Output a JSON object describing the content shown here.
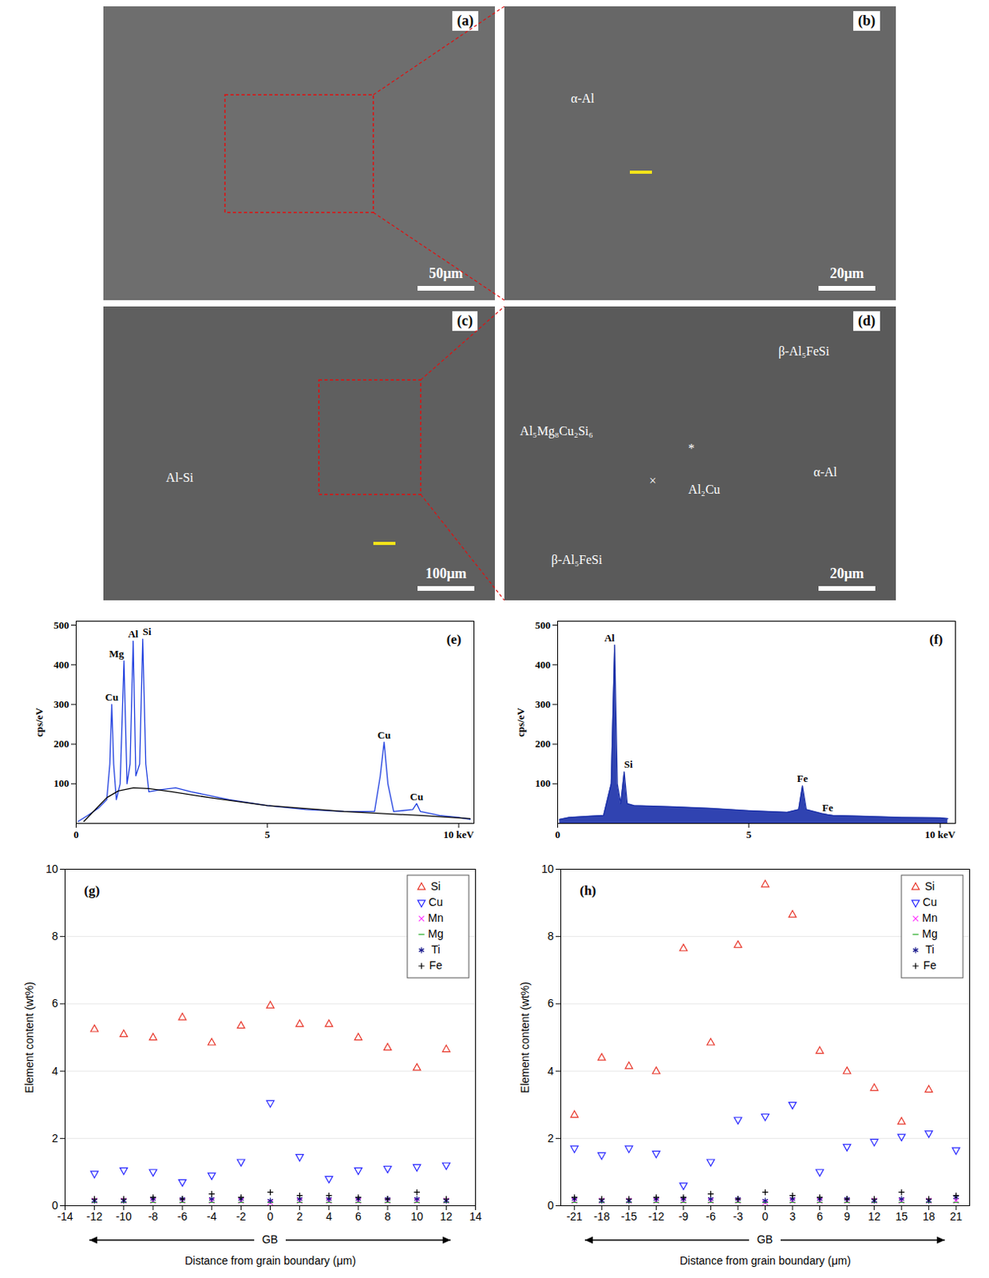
{
  "micrographs": [
    {
      "panel": "(a)",
      "scale_bar": "50μm",
      "labels": []
    },
    {
      "panel": "(b)",
      "scale_bar": "20μm",
      "labels": [
        "α-Al"
      ]
    },
    {
      "panel": "(c)",
      "scale_bar": "100μm",
      "labels": [
        "Al-Si"
      ]
    },
    {
      "panel": "(d)",
      "scale_bar": "20μm",
      "labels": [
        "Al₅Mg₈Cu₂Si₆",
        "*",
        "×",
        "β-Al₅FeSi",
        "β-Al₅FeSi",
        "Al₂Cu",
        "α-Al"
      ]
    }
  ],
  "chart_data": [
    {
      "type": "line",
      "title": "(e)",
      "ylabel": "cps/eV",
      "xlim": [
        0,
        10.4
      ],
      "xticks": [
        0,
        5,
        {
          "value": 10,
          "label": "10 keV"
        }
      ],
      "ylim": [
        0,
        510
      ],
      "yticks": [
        100,
        200,
        300,
        400,
        500
      ],
      "series": [
        {
          "color": "#1f3fdf",
          "x": [
            0.05,
            0.3,
            0.6,
            0.8,
            0.88,
            0.93,
            0.98,
            1.05,
            1.15,
            1.25,
            1.33,
            1.41,
            1.49,
            1.56,
            1.66,
            1.74,
            1.82,
            1.9,
            2.2,
            2.6,
            3,
            3.5,
            4,
            5,
            6,
            7,
            7.8,
            7.95,
            8.05,
            8.15,
            8.3,
            8.8,
            8.9,
            9,
            9.5,
            10,
            10.3
          ],
          "values": [
            5,
            20,
            40,
            60,
            150,
            300,
            150,
            60,
            100,
            410,
            100,
            150,
            460,
            120,
            150,
            465,
            150,
            80,
            85,
            90,
            80,
            70,
            60,
            45,
            35,
            30,
            30,
            120,
            205,
            100,
            30,
            35,
            50,
            30,
            20,
            15,
            10
          ]
        },
        {
          "color": "#000000",
          "x": [
            0.2,
            0.5,
            0.8,
            1.1,
            1.5,
            1.9,
            2.5,
            3.5,
            5,
            7,
            9,
            10.3
          ],
          "values": [
            5,
            35,
            65,
            82,
            90,
            88,
            80,
            65,
            45,
            30,
            20,
            12
          ]
        }
      ],
      "annotations": [
        {
          "x": 0.93,
          "y": 300,
          "text": "Cu"
        },
        {
          "x": 1.25,
          "y": 410,
          "text": "Mg"
        },
        {
          "x": 1.49,
          "y": 460,
          "text": "Al"
        },
        {
          "x": 1.74,
          "y": 465,
          "text": "Si"
        },
        {
          "x": 8.05,
          "y": 205,
          "text": "Cu"
        },
        {
          "x": 8.9,
          "y": 50,
          "text": "Cu"
        }
      ]
    },
    {
      "type": "area",
      "title": "(f)",
      "ylabel": "cps/eV",
      "xlim": [
        0,
        10.4
      ],
      "xticks": [
        0,
        5,
        {
          "value": 10,
          "label": "10 keV"
        }
      ],
      "ylim": [
        0,
        510
      ],
      "yticks": [
        100,
        200,
        300,
        400,
        500
      ],
      "series": [
        {
          "color": "#1a2fa8",
          "type": "area",
          "x": [
            0.05,
            0.3,
            0.8,
            1.2,
            1.4,
            1.49,
            1.56,
            1.65,
            1.74,
            1.82,
            2,
            3,
            4,
            5,
            6,
            6.3,
            6.4,
            6.5,
            6.9,
            7.06,
            7.2,
            8,
            9,
            10,
            10.2
          ],
          "values": [
            10,
            15,
            18,
            20,
            100,
            450,
            100,
            50,
            130,
            50,
            45,
            42,
            38,
            32,
            28,
            35,
            95,
            35,
            25,
            22,
            20,
            18,
            15,
            14,
            12
          ]
        }
      ],
      "annotations": [
        {
          "x": 1.49,
          "y": 450,
          "text": "Al"
        },
        {
          "x": 1.74,
          "y": 130,
          "text": "Si"
        },
        {
          "x": 6.4,
          "y": 95,
          "text": "Fe"
        },
        {
          "x": 7.06,
          "y": 22,
          "text": "Fe"
        }
      ]
    },
    {
      "type": "scatter",
      "title": "(g)",
      "xlabel": "Distance from grain boundary (μm)",
      "ylabel": "Element content (wt%)",
      "x": [
        -12,
        -10,
        -8,
        -6,
        -4,
        -2,
        0,
        2,
        4,
        6,
        8,
        10,
        12
      ],
      "xlim": [
        -14,
        14
      ],
      "xticks": [
        -14,
        -12,
        -10,
        -8,
        -6,
        -4,
        -2,
        0,
        2,
        4,
        6,
        8,
        10,
        12,
        14
      ],
      "ylim": [
        0,
        10
      ],
      "yticks": [
        0,
        2,
        4,
        6,
        8,
        10
      ],
      "grid": true,
      "legend": "top-right",
      "series": [
        {
          "name": "Si",
          "color": "#e8382c",
          "marker": "triangle-up",
          "values": [
            5.25,
            5.1,
            5.0,
            5.6,
            4.85,
            5.35,
            5.95,
            5.4,
            5.4,
            5.0,
            4.7,
            4.1,
            4.65
          ]
        },
        {
          "name": "Cu",
          "color": "#2a2aff",
          "marker": "triangle-down",
          "values": [
            0.95,
            1.05,
            1.0,
            0.7,
            0.9,
            1.3,
            3.05,
            1.45,
            0.8,
            1.05,
            1.1,
            1.15,
            1.2
          ]
        },
        {
          "name": "Mn",
          "color": "#ff33ff",
          "marker": "x",
          "values": [
            0.15,
            0.15,
            0.15,
            0.15,
            0.15,
            0.15,
            0.1,
            0.15,
            0.15,
            0.15,
            0.15,
            0.15,
            0.15
          ]
        },
        {
          "name": "Mg",
          "color": "#22aa22",
          "marker": "dash",
          "values": [
            0.1,
            0.1,
            0.1,
            0.1,
            0.1,
            0.1,
            0.1,
            0.1,
            0.1,
            0.1,
            0.1,
            0.1,
            0.1
          ]
        },
        {
          "name": "Ti",
          "color": "#1a1a8c",
          "marker": "asterisk",
          "values": [
            0.15,
            0.15,
            0.2,
            0.2,
            0.2,
            0.2,
            0.15,
            0.2,
            0.2,
            0.2,
            0.2,
            0.2,
            0.15
          ]
        },
        {
          "name": "Fe",
          "color": "#000000",
          "marker": "plus",
          "values": [
            0.2,
            0.2,
            0.25,
            0.2,
            0.35,
            0.25,
            0.4,
            0.3,
            0.3,
            0.25,
            0.2,
            0.4,
            0.2
          ]
        }
      ],
      "annotations": [
        {
          "x": 0,
          "text": "GB"
        }
      ]
    },
    {
      "type": "scatter",
      "title": "(h)",
      "xlabel": "Distance from grain boundary (μm)",
      "ylabel": "Element content (wt%)",
      "x": [
        -21,
        -18,
        -15,
        -12,
        -9,
        -6,
        -3,
        0,
        3,
        6,
        9,
        12,
        15,
        18,
        21
      ],
      "xlim": [
        -22.5,
        22.5
      ],
      "xticks": [
        -21,
        -18,
        -15,
        -12,
        -9,
        -6,
        -3,
        0,
        3,
        6,
        9,
        12,
        15,
        18,
        21
      ],
      "ylim": [
        0,
        10
      ],
      "yticks": [
        0,
        2,
        4,
        6,
        8,
        10
      ],
      "grid": true,
      "legend": "top-right",
      "series": [
        {
          "name": "Si",
          "color": "#e8382c",
          "marker": "triangle-up",
          "values": [
            2.7,
            4.4,
            4.15,
            4.0,
            7.65,
            4.85,
            7.75,
            9.55,
            8.65,
            4.6,
            4.0,
            3.5,
            2.5,
            3.45,
            null
          ]
        },
        {
          "name": "Cu",
          "color": "#2a2aff",
          "marker": "triangle-down",
          "values": [
            1.7,
            1.5,
            1.7,
            1.55,
            0.6,
            1.3,
            2.55,
            2.65,
            3.0,
            1.0,
            1.75,
            1.9,
            2.05,
            2.15,
            1.65
          ]
        },
        {
          "name": "Mn",
          "color": "#ff33ff",
          "marker": "x",
          "values": [
            0.15,
            0.15,
            0.15,
            0.15,
            0.15,
            0.15,
            0.15,
            0.1,
            0.15,
            0.15,
            0.15,
            0.15,
            0.15,
            0.15,
            0.15
          ]
        },
        {
          "name": "Mg",
          "color": "#22aa22",
          "marker": "dash",
          "values": [
            0.1,
            0.1,
            0.1,
            0.1,
            0.1,
            0.1,
            0.1,
            0.1,
            0.1,
            0.1,
            0.1,
            0.1,
            0.1,
            0.1,
            0.1
          ]
        },
        {
          "name": "Ti",
          "color": "#1a1a8c",
          "marker": "asterisk",
          "values": [
            0.2,
            0.15,
            0.15,
            0.2,
            0.2,
            0.2,
            0.2,
            0.15,
            0.2,
            0.2,
            0.2,
            0.15,
            0.2,
            0.15,
            0.25
          ]
        },
        {
          "name": "Fe",
          "color": "#000000",
          "marker": "plus",
          "values": [
            0.25,
            0.2,
            0.2,
            0.25,
            0.25,
            0.35,
            0.2,
            0.4,
            0.3,
            0.25,
            0.2,
            0.2,
            0.4,
            0.2,
            0.3
          ]
        }
      ],
      "annotations": [
        {
          "x": 0,
          "text": "GB"
        }
      ]
    }
  ]
}
